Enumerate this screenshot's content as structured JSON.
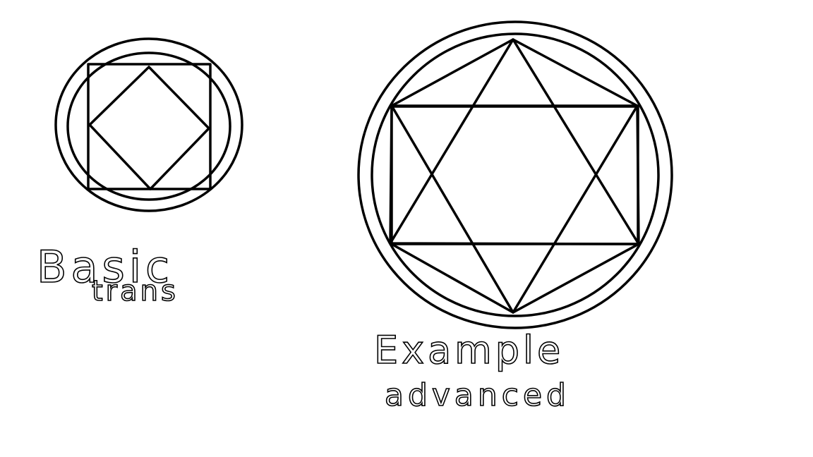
{
  "left_drawing": {
    "label_lines": [
      "Basic",
      "trans"
    ]
  },
  "right_drawing": {
    "label_lines": [
      "Example",
      "advanced"
    ]
  }
}
